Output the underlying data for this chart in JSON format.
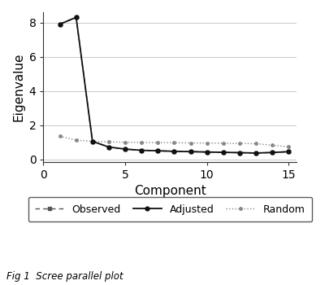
{
  "components": [
    1,
    2,
    3,
    4,
    5,
    6,
    7,
    8,
    9,
    10,
    11,
    12,
    13,
    14,
    15
  ],
  "observed": [
    7.9,
    8.3,
    1.05,
    0.72,
    0.6,
    0.53,
    0.5,
    0.47,
    0.45,
    0.43,
    0.41,
    0.39,
    0.37,
    0.4,
    0.45
  ],
  "adjusted": [
    7.9,
    8.3,
    1.05,
    0.72,
    0.6,
    0.53,
    0.5,
    0.47,
    0.45,
    0.43,
    0.41,
    0.39,
    0.37,
    0.4,
    0.45
  ],
  "random": [
    1.35,
    1.12,
    1.05,
    1.02,
    1.0,
    0.99,
    0.98,
    0.97,
    0.96,
    0.95,
    0.94,
    0.93,
    0.92,
    0.82,
    0.74
  ],
  "ylabel": "Eigenvalue",
  "xlabel": "Component",
  "ylim": [
    -0.15,
    8.6
  ],
  "xlim": [
    0.2,
    15.5
  ],
  "yticks": [
    0,
    2,
    4,
    6,
    8
  ],
  "xticks": [
    0,
    5,
    10,
    15
  ],
  "grid_color": "#c0c0c0",
  "observed_color": "#555555",
  "adjusted_color": "#111111",
  "random_color": "#888888",
  "caption": "Fig 1  Scree parallel plot",
  "legend_labels": [
    "Observed",
    "Adjusted",
    "Random"
  ],
  "background_color": "#ffffff",
  "tick_labelsize": 10,
  "axis_labelsize": 11,
  "legend_fontsize": 9
}
